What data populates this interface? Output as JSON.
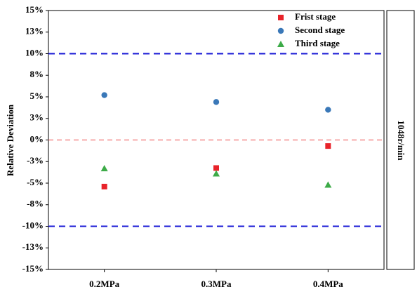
{
  "chart_data": {
    "type": "scatter",
    "y_label": "Relative Deviation",
    "side_label": "1048r/min",
    "categories": [
      "0.2MPa",
      "0.3MPa",
      "0.4MPa"
    ],
    "series": [
      {
        "name": "Frist stage",
        "color": "#e8232a",
        "marker": "square",
        "values": [
          -5.4,
          -3.25,
          -0.7
        ]
      },
      {
        "name": "Second stage",
        "color": "#3a78b8",
        "marker": "circle",
        "values": [
          5.2,
          4.4,
          3.5
        ]
      },
      {
        "name": "Third stage",
        "color": "#3dab48",
        "marker": "triangle",
        "values": [
          -3.3,
          -3.9,
          -5.2
        ]
      }
    ],
    "reference_lines": [
      {
        "value": 10,
        "color": "#1a1ad6"
      },
      {
        "value": 0,
        "color": "#f07070"
      },
      {
        "value": -10,
        "color": "#1a1ad6"
      }
    ],
    "ylim": [
      -15,
      15
    ],
    "yticks": [
      {
        "value": -15,
        "label": "-15%"
      },
      {
        "value": -12.5,
        "label": "-13%"
      },
      {
        "value": -10,
        "label": "-10%"
      },
      {
        "value": -7.5,
        "label": "-8%"
      },
      {
        "value": -5,
        "label": "-5%"
      },
      {
        "value": -2.5,
        "label": "-3%"
      },
      {
        "value": 0,
        "label": "0%"
      },
      {
        "value": 2.5,
        "label": "3%"
      },
      {
        "value": 5,
        "label": "5%"
      },
      {
        "value": 7.5,
        "label": "8%"
      },
      {
        "value": 10,
        "label": "10%"
      },
      {
        "value": 12.5,
        "label": "13%"
      },
      {
        "value": 15,
        "label": "15%"
      }
    ],
    "legend": "upper-right"
  }
}
